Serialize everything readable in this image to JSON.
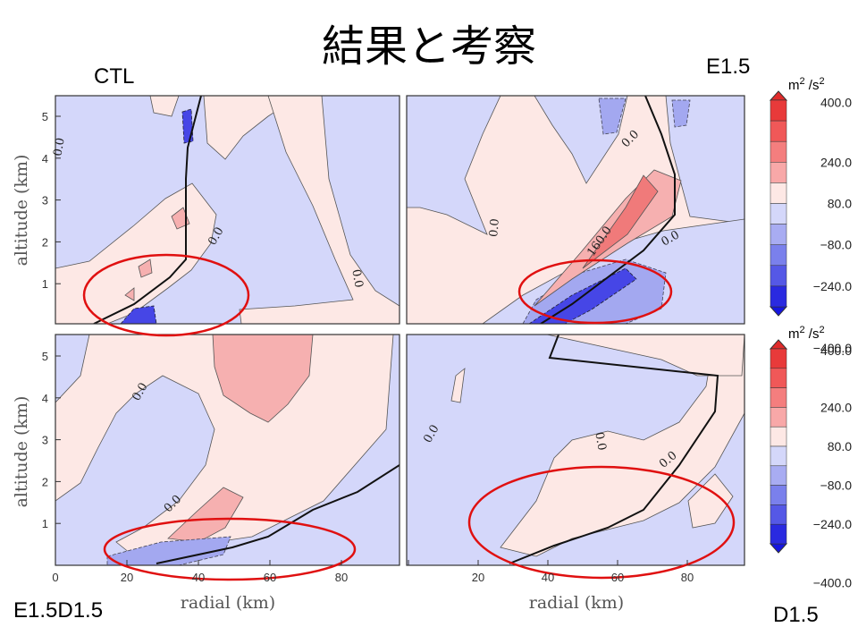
{
  "title": "結果と考察",
  "panels": [
    {
      "label": "CTL",
      "contour_labels": [
        "0.0",
        "0.0",
        "0.0"
      ]
    },
    {
      "label": "E1.5",
      "contour_labels": [
        "0.0",
        "0.0",
        "160.0",
        "0.0"
      ]
    },
    {
      "label": "E1.5D1.5",
      "contour_labels": [
        "0.0",
        "0.0"
      ]
    },
    {
      "label": "D1.5",
      "contour_labels": [
        "0.0",
        "0.0",
        "0.0"
      ]
    }
  ],
  "axes": {
    "y_label": "altitude (km)",
    "x_label": "radial (km)",
    "y_ticks": [
      1,
      2,
      3,
      4,
      5
    ],
    "x_ticks": [
      0,
      20,
      40,
      60,
      80
    ]
  },
  "colorbar": {
    "unit_base": "m",
    "unit_exp": "2",
    "unit_div": " /s",
    "unit_div_exp": "2",
    "labels": [
      "400.0",
      "240.0",
      "80.0",
      "−80.0",
      "−240.0",
      "−400.0"
    ]
  }
}
